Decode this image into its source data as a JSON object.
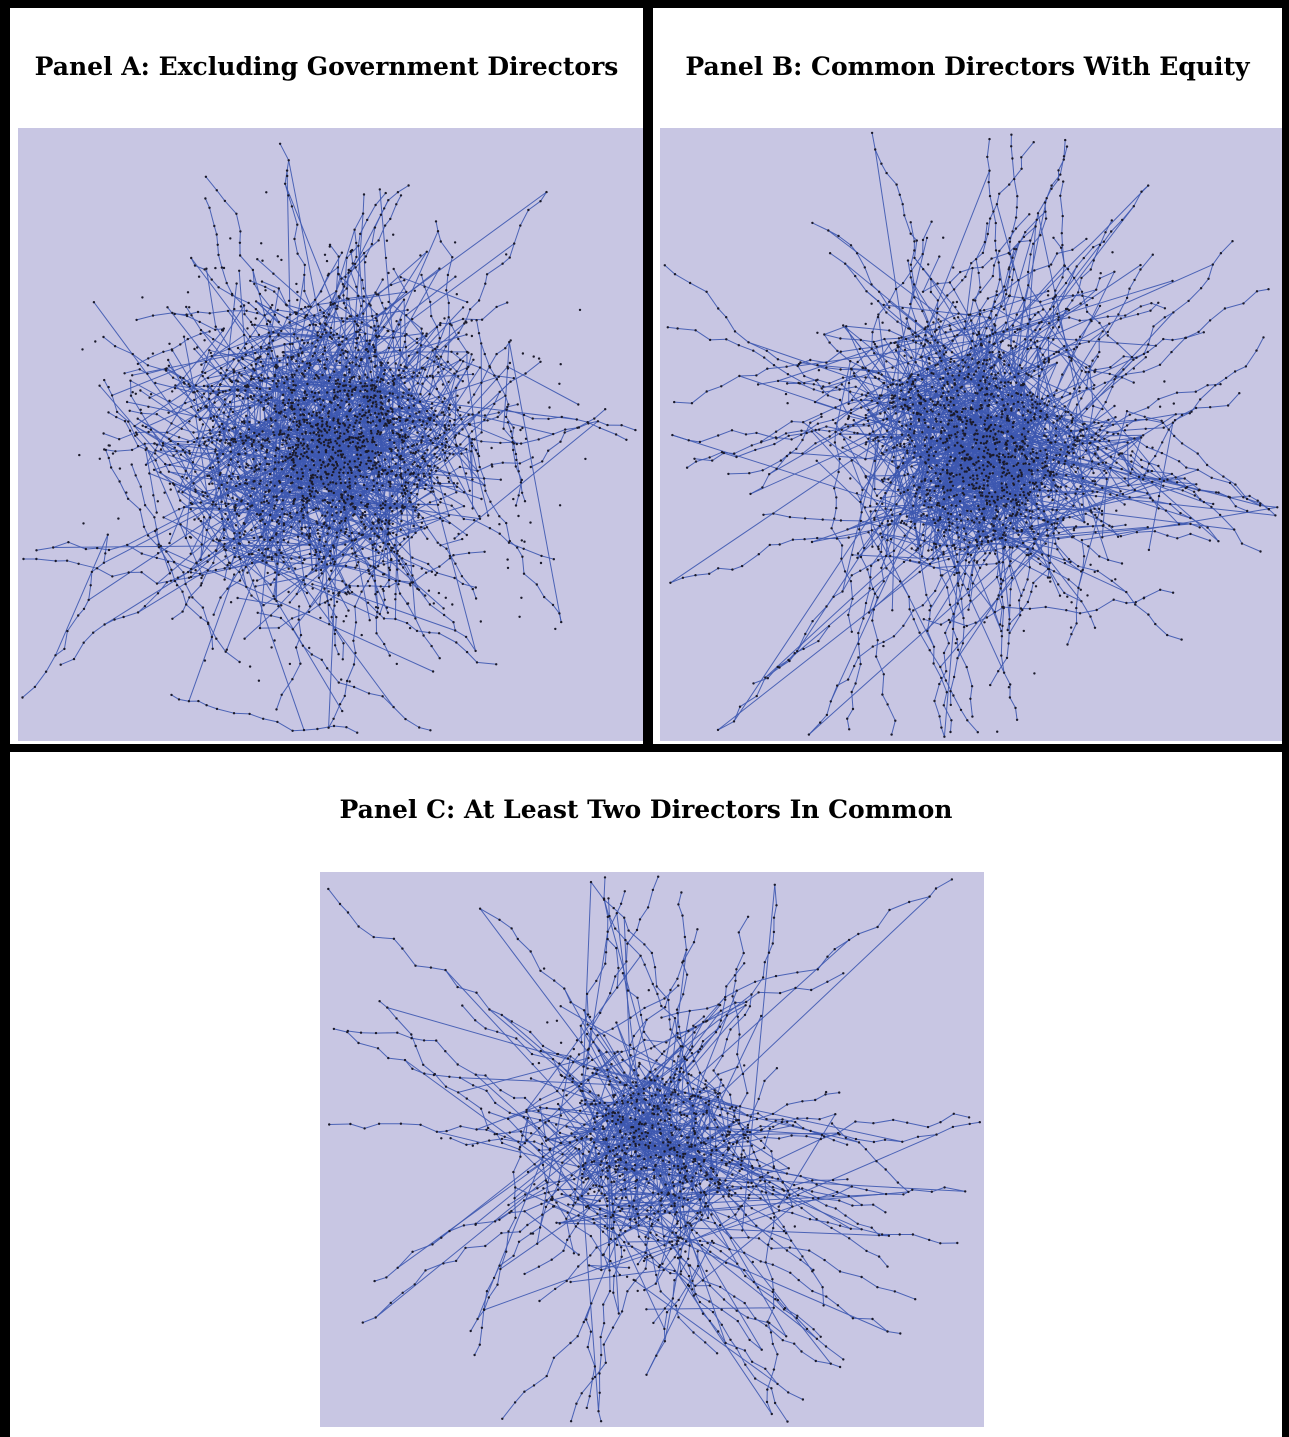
{
  "panels": [
    {
      "id": "a",
      "title": "Panel A: Excluding Government Directors"
    },
    {
      "id": "b",
      "title": "Panel B: Common Directors With Equity"
    },
    {
      "id": "c",
      "title": "Panel C: At Least Two Directors In Common"
    }
  ],
  "colors": {
    "background": "#c8c6e3",
    "edge": "#3d58b0",
    "node": "#1a1a2a",
    "border": "#000000"
  }
}
